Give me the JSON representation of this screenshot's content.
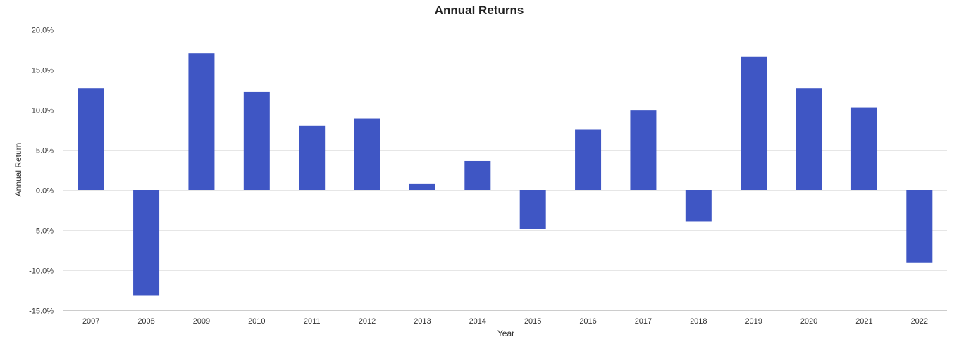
{
  "chart_data": {
    "type": "bar",
    "title": "Annual Returns",
    "xlabel": "Year",
    "ylabel": "Annual Return",
    "categories": [
      "2007",
      "2008",
      "2009",
      "2010",
      "2011",
      "2012",
      "2013",
      "2014",
      "2015",
      "2016",
      "2017",
      "2018",
      "2019",
      "2020",
      "2021",
      "2022"
    ],
    "series": [
      {
        "values": [
          12.7,
          -13.2,
          17.0,
          12.2,
          8.0,
          8.9,
          0.8,
          3.6,
          -4.9,
          7.5,
          9.9,
          -3.9,
          16.6,
          12.7,
          10.3,
          -9.1
        ]
      }
    ],
    "ylim": [
      -15,
      20
    ],
    "yticks": [
      20,
      15,
      10,
      5,
      0,
      -5,
      -10,
      -15
    ],
    "ytick_labels": [
      "20.0%",
      "15.0%",
      "10.0%",
      "5.0%",
      "0.0%",
      "-5.0%",
      "-10.0%",
      "-15.0%"
    ],
    "grid": true,
    "legend": "none",
    "bar_color": "#3f56c4"
  }
}
